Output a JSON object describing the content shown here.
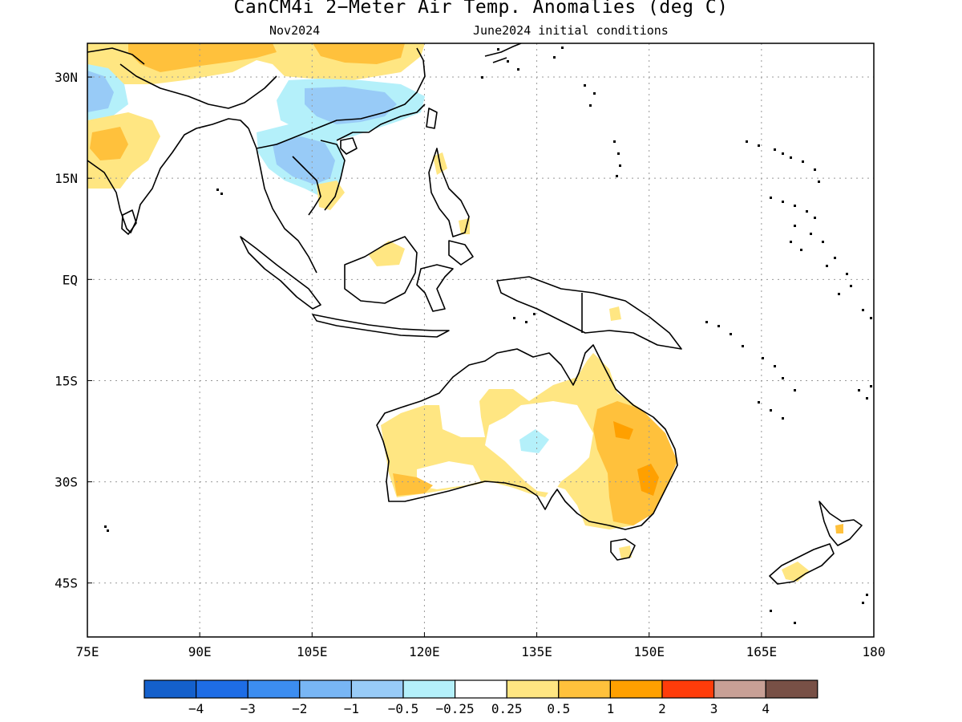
{
  "title": "CanCM4i 2−Meter Air Temp. Anomalies (deg C)",
  "subtitle_left": "Nov2024",
  "subtitle_right": "June2024 initial conditions",
  "map": {
    "lon_range": [
      75,
      180
    ],
    "lat_range": [
      -53,
      35
    ],
    "lon_ticks": [
      {
        "v": 75,
        "label": "75E"
      },
      {
        "v": 90,
        "label": "90E"
      },
      {
        "v": 105,
        "label": "105E"
      },
      {
        "v": 120,
        "label": "120E"
      },
      {
        "v": 135,
        "label": "135E"
      },
      {
        "v": 150,
        "label": "150E"
      },
      {
        "v": 165,
        "label": "165E"
      },
      {
        "v": 180,
        "label": "180"
      }
    ],
    "lat_ticks": [
      {
        "v": 30,
        "label": "30N"
      },
      {
        "v": 15,
        "label": "15N"
      },
      {
        "v": 0,
        "label": "EQ"
      },
      {
        "v": -15,
        "label": "15S"
      },
      {
        "v": -30,
        "label": "30S"
      },
      {
        "v": -45,
        "label": "45S"
      }
    ],
    "grid": "dotted"
  },
  "colorbar": {
    "colors": [
      "#1460cc",
      "#1e6de6",
      "#3c8df0",
      "#78b6f5",
      "#98cbf7",
      "#b4f0fa",
      "#ffffff",
      "#ffe682",
      "#ffc13c",
      "#ffa000",
      "#ff3c0a",
      "#c8a096",
      "#785046"
    ],
    "labels": [
      "−4",
      "−3",
      "−2",
      "−1",
      "−0.5",
      "−0.25",
      "0.25",
      "0.5",
      "1",
      "2",
      "3",
      "4"
    ]
  }
}
